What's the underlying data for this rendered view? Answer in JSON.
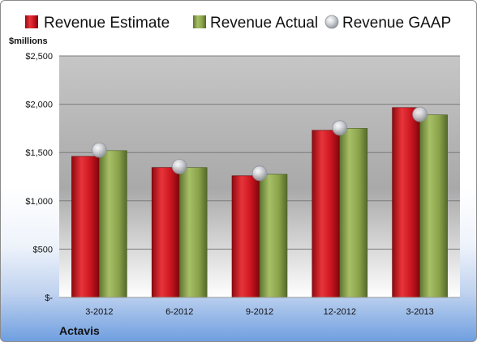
{
  "company": "Actavis",
  "unit_label": "$millions",
  "colors": {
    "estimate": "#c8141e",
    "actual": "#8aa24a",
    "gaap": "#b9bcc4"
  },
  "chart_data": {
    "type": "bar",
    "title": "",
    "xlabel": "",
    "ylabel": "$millions",
    "ylim": [
      0,
      2500
    ],
    "yticks": [
      {
        "value": 0,
        "label": "$-"
      },
      {
        "value": 500,
        "label": "$500"
      },
      {
        "value": 1000,
        "label": "$1,000"
      },
      {
        "value": 1500,
        "label": "$1,500"
      },
      {
        "value": 2000,
        "label": "$2,000"
      },
      {
        "value": 2500,
        "label": "$2,500"
      }
    ],
    "grid": true,
    "legend": "top",
    "categories": [
      "3-2012",
      "6-2012",
      "9-2012",
      "12-2012",
      "3-2013"
    ],
    "series": [
      {
        "name": "Revenue Estimate",
        "kind": "bar",
        "values": [
          1460,
          1345,
          1260,
          1730,
          1965
        ]
      },
      {
        "name": "Revenue Actual",
        "kind": "bar",
        "values": [
          1520,
          1345,
          1275,
          1750,
          1890
        ]
      },
      {
        "name": "Revenue GAAP",
        "kind": "marker",
        "values": [
          1525,
          1355,
          1285,
          1755,
          1895
        ]
      }
    ]
  }
}
